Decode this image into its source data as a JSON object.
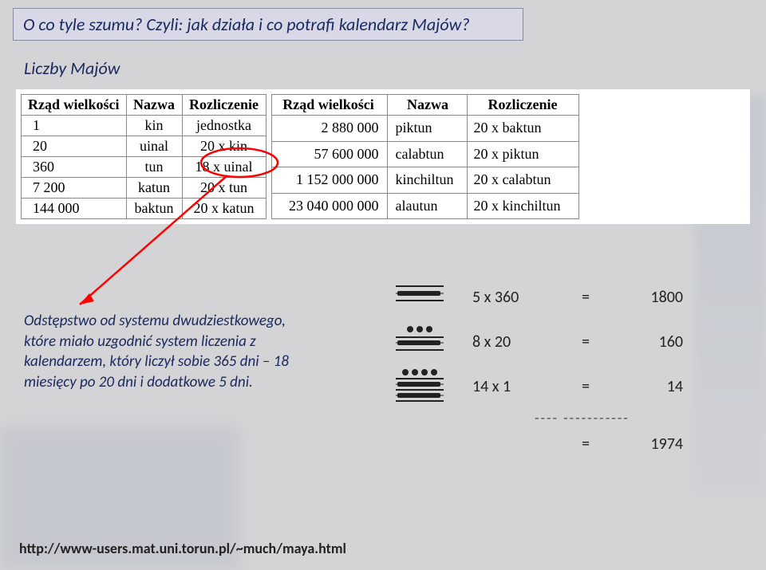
{
  "title": "O co tyle szumu? Czyli: jak działa i co potrafi kalendarz Majów?",
  "section_label": "Liczby Majów",
  "table1": {
    "headers": [
      "Rząd wielkości",
      "Nazwa",
      "Rozliczenie"
    ],
    "rows": [
      [
        "1",
        "kin",
        "jednostka"
      ],
      [
        "20",
        "uinal",
        "20 x kin"
      ],
      [
        "360",
        "tun",
        "18 x uinal"
      ],
      [
        "7 200",
        "katun",
        "20 x tun"
      ],
      [
        "144 000",
        "baktun",
        "20 x katun"
      ]
    ]
  },
  "table2": {
    "headers": [
      "Rząd wielkości",
      "Nazwa",
      "Rozliczenie"
    ],
    "rows": [
      [
        "2 880 000",
        "piktun",
        "20 x baktun"
      ],
      [
        "57 600 000",
        "calabtun",
        "20 x piktun"
      ],
      [
        "1 152 000 000",
        "kinchiltun",
        "20 x calabtun"
      ],
      [
        "23 040 000 000",
        "alautun",
        "20 x kinchiltun"
      ]
    ]
  },
  "annotation": {
    "circle_stroke": "#ff0000",
    "arrow_stroke": "#ff0000",
    "circled_cell_text": "18 x uinal"
  },
  "note_text": "Odstępstwo od systemu dwudziestkowego, które miało uzgodnić  system liczenia z kalendarzem, który liczył  sobie 365 dni – 18 miesięcy po 20 dni i dodatkowe 5 dni.",
  "calc": {
    "rows": [
      {
        "glyph": "bar1",
        "expr": "5 x 360",
        "value": "1800"
      },
      {
        "glyph": "dots3_bar1",
        "expr": "8 x 20",
        "value": "160"
      },
      {
        "glyph": "dots4_bar2",
        "expr": "14 x 1",
        "value": "14"
      }
    ],
    "sep": "----  -----------",
    "total_eq": "=",
    "total": "1974",
    "glyph_color": "#222222"
  },
  "footer_url": "http://www-users.mat.uni.torun.pl/~much/maya.html",
  "colors": {
    "page_bg": "#d4d4d6",
    "title_bg": "#d8d8e6",
    "title_border": "#8a8aa0",
    "heading_text": "#1c2a60",
    "table_border": "#888888",
    "table_bg": "#ffffff"
  },
  "fonts": {
    "title_size_pt": 17,
    "table_family": "Times New Roman",
    "table_size_pt": 14,
    "note_size_pt": 14
  }
}
